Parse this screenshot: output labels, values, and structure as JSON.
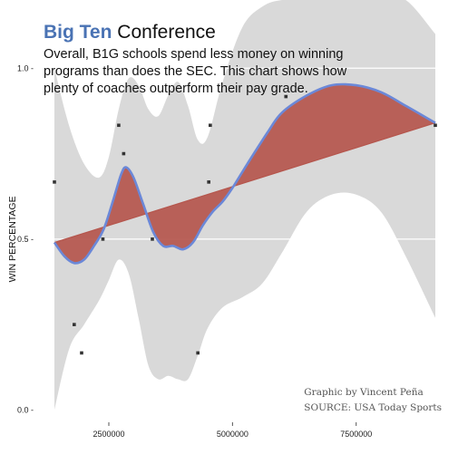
{
  "header": {
    "title_bold": "Big Ten",
    "title_rest": "Conference",
    "subtitle": "Overall, B1G schools spend less money on winning programs than does the SEC. This chart shows how plenty of coaches outperform their pay grade."
  },
  "credit": {
    "line1": "Graphic by Vincent Peña",
    "line2": "SOURCE: USA Today Sports"
  },
  "colors": {
    "band": "#d9d9d9",
    "fill": "#b5564d",
    "loess": "#6b88d8",
    "point": "#333333",
    "grid": "#ffffff"
  },
  "chart_data": {
    "type": "scatter",
    "ylabel": "WIN PERCENTAGE",
    "xlabel": "",
    "xlim": [
      1400000,
      9100000
    ],
    "ylim": [
      -0.02,
      1.12
    ],
    "xticks": [
      2500000,
      5000000,
      7500000
    ],
    "xtick_labels": [
      "2500000",
      "5000000",
      "7500000"
    ],
    "yticks": [
      0.0,
      0.5,
      1.0
    ],
    "ytick_labels": [
      "0.0 -",
      "0.5 -",
      "1.0 -"
    ],
    "points": [
      {
        "x": 1400000,
        "y": 0.667
      },
      {
        "x": 1800000,
        "y": 0.25
      },
      {
        "x": 1950000,
        "y": 0.167
      },
      {
        "x": 2380000,
        "y": 0.5
      },
      {
        "x": 2700000,
        "y": 0.833
      },
      {
        "x": 2800000,
        "y": 0.75
      },
      {
        "x": 3380000,
        "y": 0.5
      },
      {
        "x": 4300000,
        "y": 0.167
      },
      {
        "x": 4520000,
        "y": 0.667
      },
      {
        "x": 4550000,
        "y": 0.833
      },
      {
        "x": 6080000,
        "y": 0.917
      },
      {
        "x": 9100000,
        "y": 0.833
      }
    ],
    "linear_fit": {
      "x": [
        1400000,
        9100000
      ],
      "y": [
        0.49,
        0.84
      ]
    },
    "loess_curve": {
      "x": [
        1400000,
        1600000,
        1800000,
        2000000,
        2200000,
        2400000,
        2600000,
        2750000,
        2850000,
        3000000,
        3200000,
        3400000,
        3600000,
        3800000,
        4000000,
        4200000,
        4400000,
        4600000,
        4800000,
        5000000,
        5300000,
        5700000,
        6000000,
        6500000,
        7000000,
        7500000,
        8000000,
        8500000,
        9100000
      ],
      "y": [
        0.49,
        0.45,
        0.43,
        0.44,
        0.48,
        0.53,
        0.62,
        0.69,
        0.71,
        0.68,
        0.6,
        0.52,
        0.48,
        0.48,
        0.47,
        0.49,
        0.54,
        0.58,
        0.61,
        0.65,
        0.72,
        0.81,
        0.87,
        0.92,
        0.95,
        0.95,
        0.93,
        0.89,
        0.84
      ]
    },
    "confidence_band": {
      "x": [
        1400000,
        1700000,
        2000000,
        2300000,
        2500000,
        2700000,
        2900000,
        3100000,
        3300000,
        3500000,
        3700000,
        3900000,
        4100000,
        4300000,
        4500000,
        4800000,
        5200000,
        5600000,
        6000000,
        6500000,
        7000000,
        7500000,
        8000000,
        8500000,
        9100000
      ],
      "upper": [
        1.0,
        0.83,
        0.72,
        0.68,
        0.74,
        0.88,
        0.97,
        0.95,
        0.88,
        0.86,
        0.92,
        0.96,
        0.89,
        0.79,
        0.8,
        0.96,
        1.12,
        1.18,
        1.22,
        1.25,
        1.27,
        1.27,
        1.26,
        1.22,
        1.1
      ],
      "lower": [
        0.0,
        0.18,
        0.25,
        0.32,
        0.38,
        0.44,
        0.4,
        0.27,
        0.13,
        0.09,
        0.1,
        0.09,
        0.09,
        0.16,
        0.24,
        0.3,
        0.33,
        0.37,
        0.46,
        0.58,
        0.63,
        0.63,
        0.58,
        0.45,
        0.27
      ]
    }
  }
}
